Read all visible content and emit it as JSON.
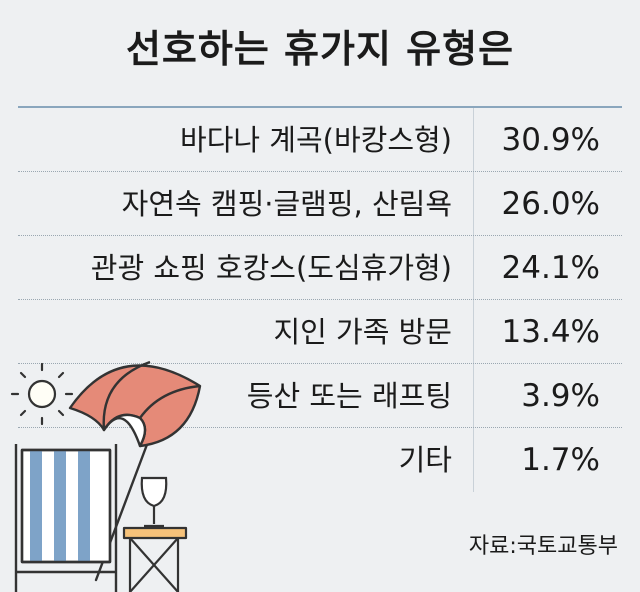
{
  "chart_data": {
    "type": "table",
    "title": "선호하는 휴가지 유형은",
    "categories": [
      "바다나 계곡(바캉스형)",
      "자연속 캠핑·글램핑, 산림욕",
      "관광 쇼핑 호캉스(도심휴가형)",
      "지인 가족 방문",
      "등산 또는 래프팅",
      "기타"
    ],
    "values": [
      30.9,
      26.0,
      24.1,
      13.4,
      3.9,
      1.7
    ],
    "value_labels": [
      "30.9%",
      "26.0%",
      "24.1%",
      "13.4%",
      "3.9%",
      "1.7%"
    ],
    "unit": "%",
    "source": "자료:국토교통부"
  },
  "colors": {
    "background": "#eef0f2",
    "umbrella_red": "#e58a78",
    "chair_blue": "#7ea3c8",
    "rule_blue": "#8aa6bd"
  },
  "illustration": {
    "icons": [
      "sun-icon",
      "beach-umbrella-icon",
      "deck-chair-icon",
      "wine-glass-icon",
      "side-table-icon"
    ]
  }
}
